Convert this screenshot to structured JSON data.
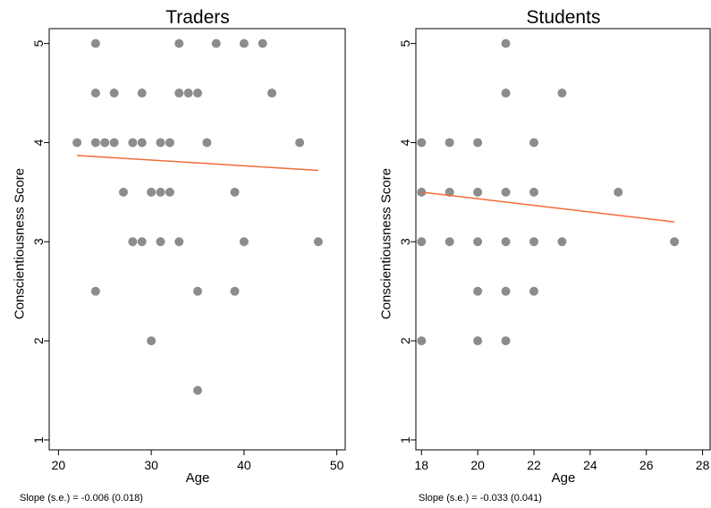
{
  "chart_data": [
    {
      "type": "scatter",
      "title": "Traders",
      "xlabel": "Age",
      "ylabel": "Conscientiousness Score",
      "xlim": [
        19,
        51
      ],
      "ylim": [
        0.9,
        5.15
      ],
      "xticks": [
        "20",
        "30",
        "40",
        "50"
      ],
      "yticks": [
        "1",
        "2",
        "3",
        "4",
        "5"
      ],
      "grid": false,
      "note": "Slope (s.e.) = -0.006 (0.018)",
      "colors": {
        "points": "#8c8c8c",
        "fit": "#f26b3a"
      },
      "points": [
        {
          "x": 24,
          "y": 5
        },
        {
          "x": 33,
          "y": 5
        },
        {
          "x": 37,
          "y": 5
        },
        {
          "x": 40,
          "y": 5
        },
        {
          "x": 42,
          "y": 5
        },
        {
          "x": 24,
          "y": 4.5
        },
        {
          "x": 26,
          "y": 4.5
        },
        {
          "x": 29,
          "y": 4.5
        },
        {
          "x": 33,
          "y": 4.5
        },
        {
          "x": 34,
          "y": 4.5
        },
        {
          "x": 35,
          "y": 4.5
        },
        {
          "x": 43,
          "y": 4.5
        },
        {
          "x": 22,
          "y": 4
        },
        {
          "x": 24,
          "y": 4
        },
        {
          "x": 25,
          "y": 4
        },
        {
          "x": 26,
          "y": 4
        },
        {
          "x": 28,
          "y": 4
        },
        {
          "x": 29,
          "y": 4
        },
        {
          "x": 31,
          "y": 4
        },
        {
          "x": 32,
          "y": 4
        },
        {
          "x": 36,
          "y": 4
        },
        {
          "x": 46,
          "y": 4
        },
        {
          "x": 27,
          "y": 3.5
        },
        {
          "x": 30,
          "y": 3.5
        },
        {
          "x": 31,
          "y": 3.5
        },
        {
          "x": 32,
          "y": 3.5
        },
        {
          "x": 39,
          "y": 3.5
        },
        {
          "x": 28,
          "y": 3
        },
        {
          "x": 29,
          "y": 3
        },
        {
          "x": 31,
          "y": 3
        },
        {
          "x": 33,
          "y": 3
        },
        {
          "x": 40,
          "y": 3
        },
        {
          "x": 48,
          "y": 3
        },
        {
          "x": 24,
          "y": 2.5
        },
        {
          "x": 35,
          "y": 2.5
        },
        {
          "x": 39,
          "y": 2.5
        },
        {
          "x": 30,
          "y": 2
        },
        {
          "x": 35,
          "y": 1.5
        }
      ],
      "fit_line": {
        "x": [
          22,
          48
        ],
        "y": [
          3.87,
          3.72
        ]
      }
    },
    {
      "type": "scatter",
      "title": "Students",
      "xlabel": "Age",
      "ylabel": "Conscientiousness Score",
      "xlim": [
        17.8,
        28.3
      ],
      "ylim": [
        0.9,
        5.15
      ],
      "xticks": [
        "18",
        "20",
        "22",
        "24",
        "26",
        "28"
      ],
      "yticks": [
        "1",
        "2",
        "3",
        "4",
        "5"
      ],
      "grid": false,
      "note": "Slope (s.e.) = -0.033 (0.041)",
      "colors": {
        "points": "#8c8c8c",
        "fit": "#f26b3a"
      },
      "points": [
        {
          "x": 21,
          "y": 5
        },
        {
          "x": 21,
          "y": 4.5
        },
        {
          "x": 23,
          "y": 4.5
        },
        {
          "x": 18,
          "y": 4
        },
        {
          "x": 19,
          "y": 4
        },
        {
          "x": 20,
          "y": 4
        },
        {
          "x": 22,
          "y": 4
        },
        {
          "x": 18,
          "y": 3.5
        },
        {
          "x": 19,
          "y": 3.5
        },
        {
          "x": 20,
          "y": 3.5
        },
        {
          "x": 21,
          "y": 3.5
        },
        {
          "x": 22,
          "y": 3.5
        },
        {
          "x": 25,
          "y": 3.5
        },
        {
          "x": 18,
          "y": 3
        },
        {
          "x": 19,
          "y": 3
        },
        {
          "x": 20,
          "y": 3
        },
        {
          "x": 21,
          "y": 3
        },
        {
          "x": 22,
          "y": 3
        },
        {
          "x": 23,
          "y": 3
        },
        {
          "x": 27,
          "y": 3
        },
        {
          "x": 20,
          "y": 2.5
        },
        {
          "x": 21,
          "y": 2.5
        },
        {
          "x": 22,
          "y": 2.5
        },
        {
          "x": 18,
          "y": 2
        },
        {
          "x": 20,
          "y": 2
        },
        {
          "x": 21,
          "y": 2
        }
      ],
      "fit_line": {
        "x": [
          18,
          27
        ],
        "y": [
          3.5,
          3.2
        ]
      }
    }
  ]
}
